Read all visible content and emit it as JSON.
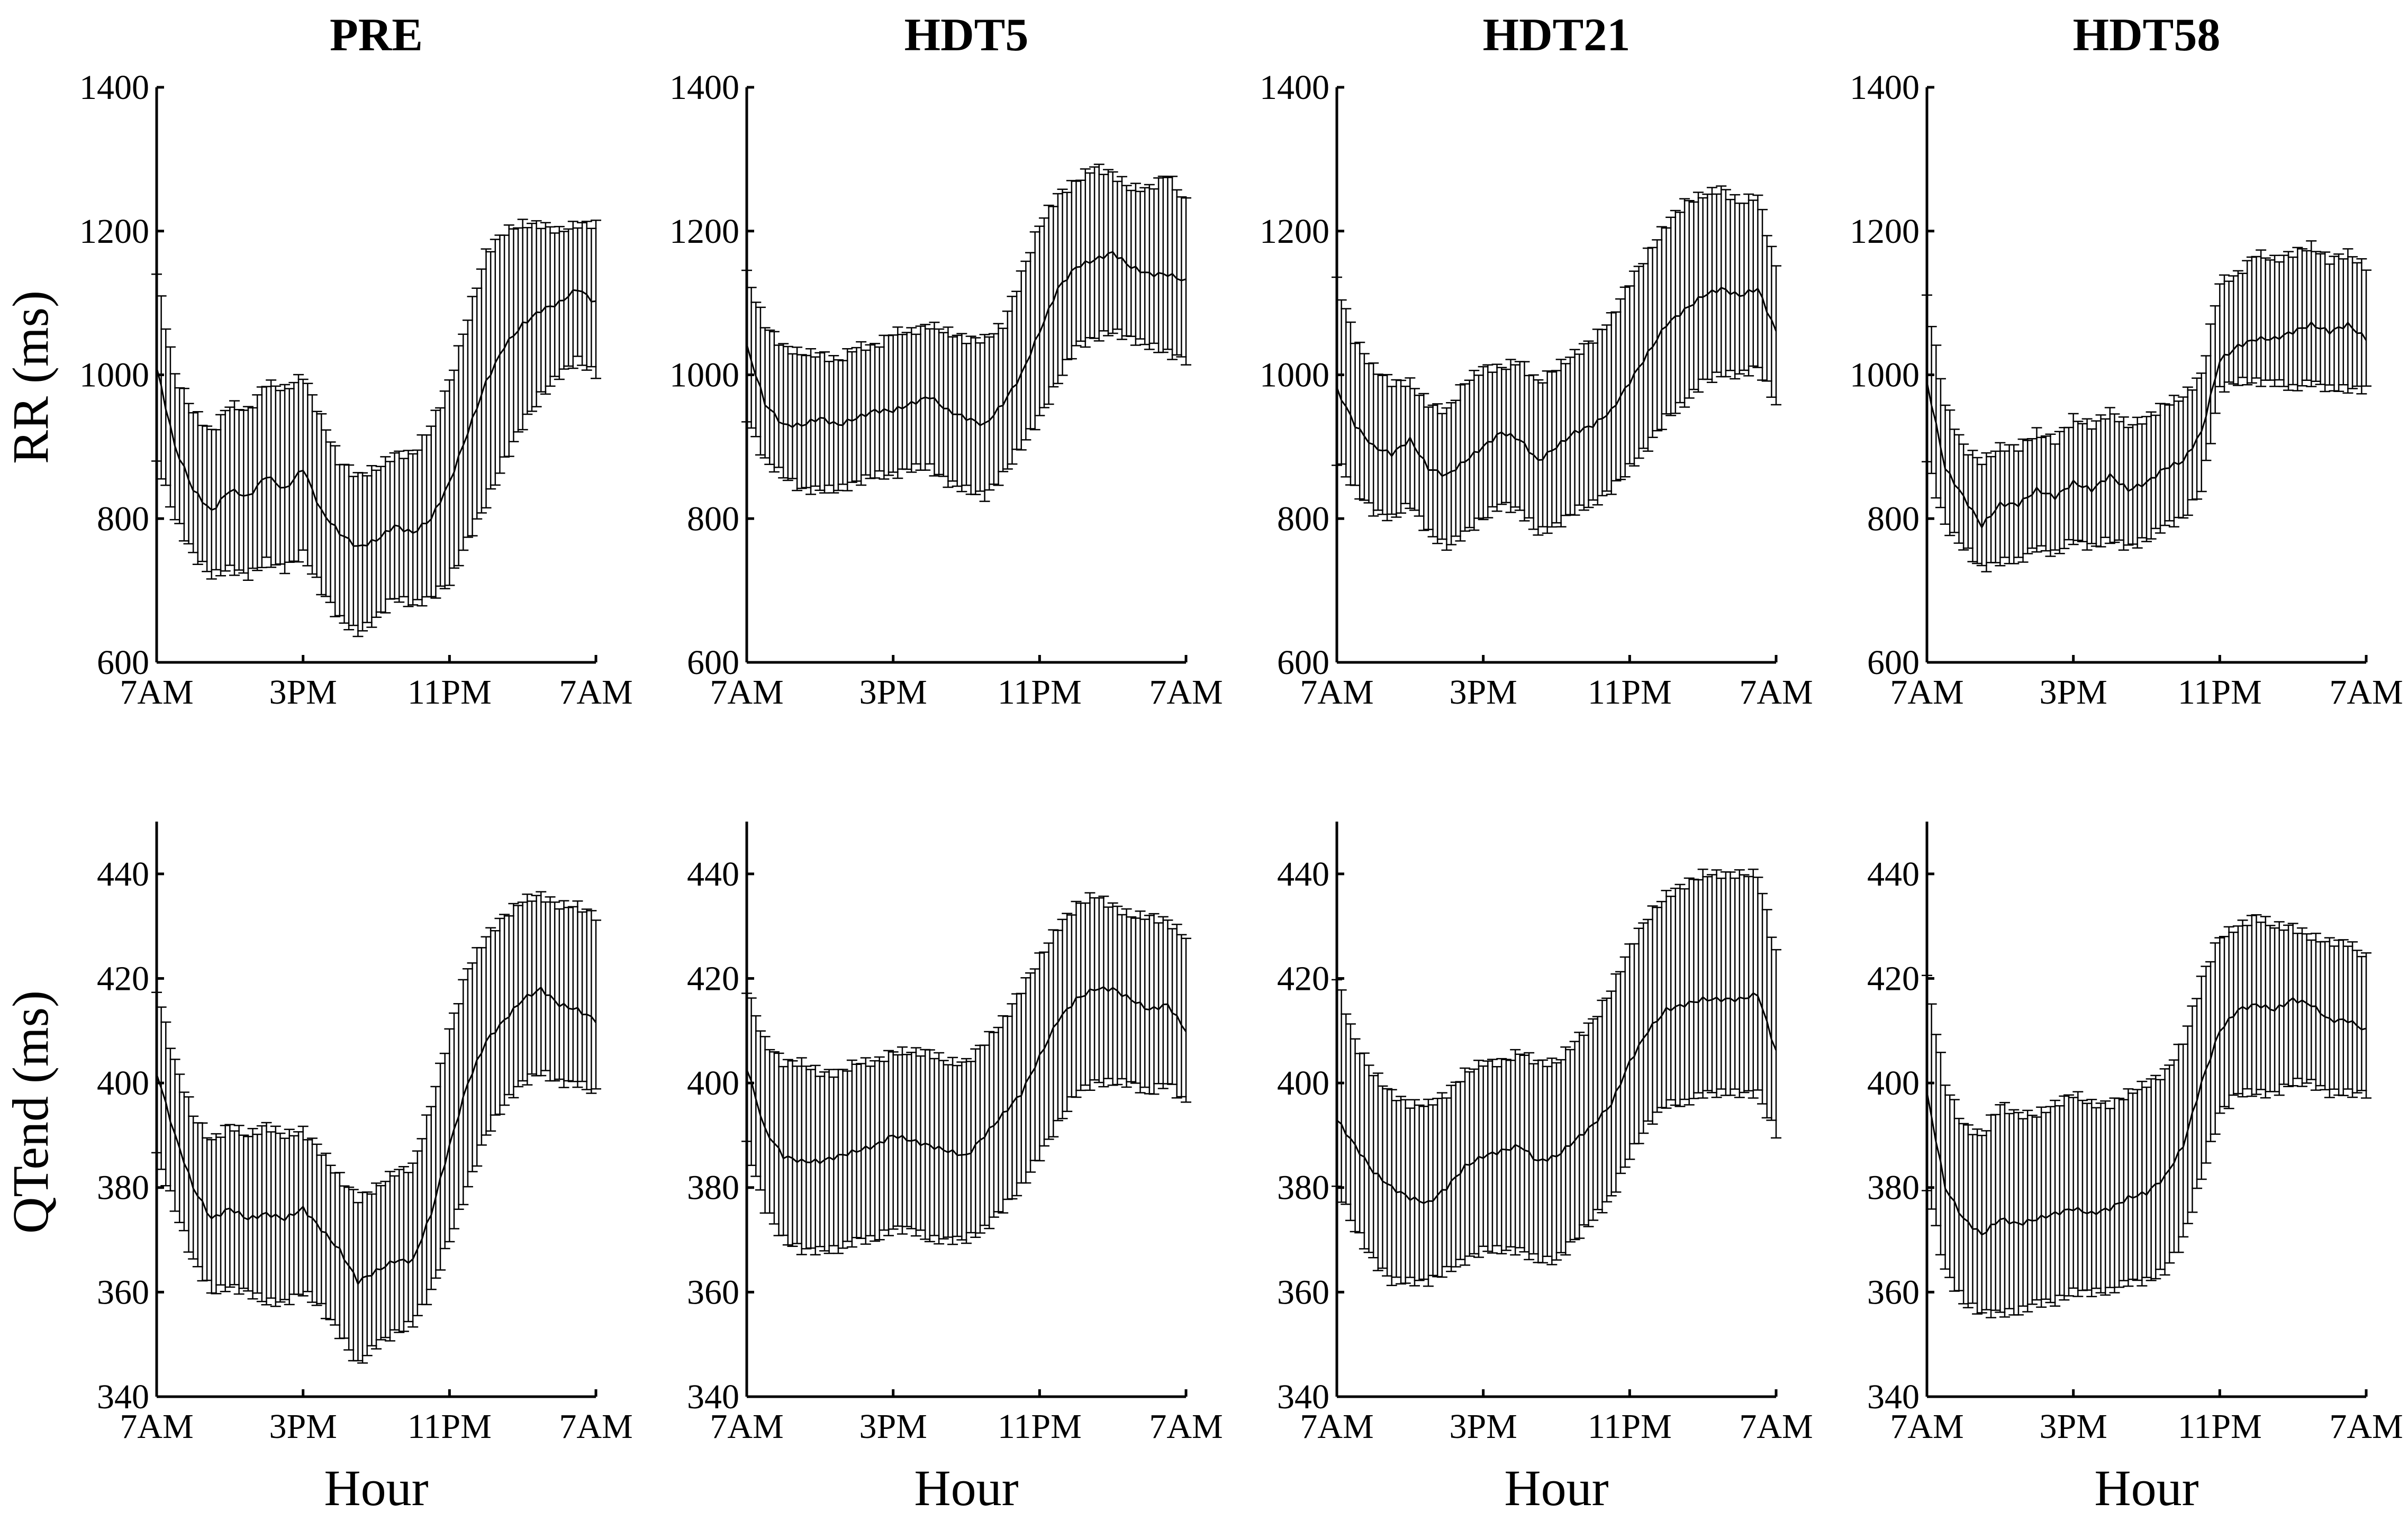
{
  "figure": {
    "ylabels": {
      "row_rr": "RR (ms)",
      "row_qt": "QTend (ms)"
    },
    "xlabel": "Hour"
  },
  "chart_data": [
    {
      "id": "pre_rr",
      "type": "line",
      "title": "PRE",
      "ylabel": "RR (ms)",
      "xlabel": "",
      "xticks": [
        "7AM",
        "3PM",
        "11PM",
        "7AM"
      ],
      "xlim": [
        0,
        24
      ],
      "yticks": [
        600,
        800,
        1000,
        1200,
        1400
      ],
      "ylim": [
        600,
        1400
      ],
      "error_bars": true,
      "series": [
        {
          "x": [
            0,
            1,
            2,
            3,
            4,
            5,
            6,
            7,
            8,
            9,
            10,
            11,
            12,
            13,
            14,
            15,
            16,
            17,
            18,
            19,
            20,
            21,
            22,
            23,
            24
          ],
          "mean": [
            1010,
            900,
            840,
            810,
            840,
            830,
            860,
            840,
            870,
            810,
            780,
            760,
            770,
            790,
            780,
            800,
            850,
            920,
            990,
            1040,
            1070,
            1090,
            1100,
            1120,
            1100
          ],
          "upper": [
            1140,
            1000,
            950,
            920,
            960,
            950,
            990,
            980,
            1000,
            940,
            880,
            860,
            870,
            890,
            890,
            930,
            990,
            1080,
            1170,
            1200,
            1210,
            1210,
            1200,
            1210,
            1210
          ],
          "lower": [
            880,
            800,
            750,
            720,
            730,
            720,
            740,
            730,
            750,
            700,
            660,
            640,
            660,
            690,
            680,
            690,
            710,
            770,
            820,
            880,
            930,
            970,
            1000,
            1020,
            1000
          ]
        }
      ]
    },
    {
      "id": "hdt5_rr",
      "type": "line",
      "title": "HDT5",
      "ylabel": "",
      "xlabel": "",
      "xticks": [
        "7AM",
        "3PM",
        "11PM",
        "7AM"
      ],
      "xlim": [
        0,
        24
      ],
      "yticks": [
        600,
        800,
        1000,
        1200,
        1400
      ],
      "ylim": [
        600,
        1400
      ],
      "error_bars": true,
      "series": [
        {
          "x": [
            0,
            1,
            2,
            3,
            4,
            5,
            6,
            7,
            8,
            9,
            10,
            11,
            12,
            13,
            14,
            15,
            16,
            17,
            18,
            19,
            20,
            21,
            22,
            23,
            24
          ],
          "mean": [
            1040,
            960,
            930,
            930,
            940,
            930,
            940,
            950,
            950,
            960,
            970,
            950,
            940,
            930,
            960,
            1000,
            1060,
            1120,
            1150,
            1160,
            1170,
            1150,
            1140,
            1140,
            1130
          ],
          "upper": [
            1140,
            1070,
            1040,
            1030,
            1030,
            1020,
            1040,
            1040,
            1060,
            1060,
            1070,
            1060,
            1050,
            1050,
            1070,
            1140,
            1210,
            1250,
            1270,
            1290,
            1280,
            1260,
            1260,
            1280,
            1240
          ],
          "lower": [
            940,
            880,
            860,
            840,
            840,
            840,
            850,
            860,
            860,
            870,
            870,
            850,
            840,
            830,
            860,
            900,
            940,
            990,
            1040,
            1050,
            1060,
            1050,
            1040,
            1030,
            1020
          ]
        }
      ]
    },
    {
      "id": "hdt21_rr",
      "type": "line",
      "title": "HDT21",
      "ylabel": "",
      "xlabel": "",
      "xticks": [
        "7AM",
        "3PM",
        "11PM",
        "7AM"
      ],
      "xlim": [
        0,
        24
      ],
      "yticks": [
        600,
        800,
        1000,
        1200,
        1400
      ],
      "ylim": [
        600,
        1400
      ],
      "error_bars": true,
      "series": [
        {
          "x": [
            0,
            1,
            2,
            3,
            4,
            5,
            6,
            7,
            8,
            9,
            10,
            11,
            12,
            13,
            14,
            15,
            16,
            17,
            18,
            19,
            20,
            21,
            22,
            23,
            24
          ],
          "mean": [
            980,
            930,
            900,
            890,
            910,
            870,
            860,
            880,
            900,
            920,
            910,
            880,
            900,
            920,
            930,
            950,
            990,
            1030,
            1070,
            1090,
            1110,
            1120,
            1110,
            1120,
            1060
          ],
          "upper": [
            1130,
            1050,
            1010,
            990,
            990,
            960,
            950,
            990,
            1010,
            1010,
            1020,
            990,
            1010,
            1030,
            1050,
            1080,
            1130,
            1170,
            1210,
            1240,
            1250,
            1260,
            1240,
            1250,
            1150
          ],
          "lower": [
            880,
            840,
            810,
            800,
            820,
            780,
            760,
            780,
            800,
            820,
            810,
            780,
            790,
            810,
            820,
            840,
            870,
            900,
            940,
            960,
            990,
            1000,
            1000,
            1010,
            960
          ]
        }
      ]
    },
    {
      "id": "hdt58_rr",
      "type": "line",
      "title": "HDT58",
      "ylabel": "",
      "xlabel": "",
      "xticks": [
        "7AM",
        "3PM",
        "11PM",
        "7AM"
      ],
      "xlim": [
        0,
        24
      ],
      "yticks": [
        600,
        800,
        1000,
        1200,
        1400
      ],
      "ylim": [
        600,
        1400
      ],
      "error_bars": true,
      "series": [
        {
          "x": [
            0,
            1,
            2,
            3,
            4,
            5,
            6,
            7,
            8,
            9,
            10,
            11,
            12,
            13,
            14,
            15,
            16,
            17,
            18,
            19,
            20,
            21,
            22,
            23,
            24
          ],
          "mean": [
            990,
            870,
            830,
            790,
            820,
            820,
            840,
            830,
            850,
            840,
            860,
            840,
            850,
            870,
            880,
            920,
            1020,
            1040,
            1050,
            1050,
            1060,
            1070,
            1060,
            1070,
            1050
          ],
          "upper": [
            1110,
            960,
            900,
            880,
            900,
            900,
            920,
            910,
            940,
            930,
            950,
            930,
            940,
            960,
            970,
            1000,
            1130,
            1140,
            1170,
            1160,
            1170,
            1180,
            1160,
            1170,
            1150
          ],
          "lower": [
            880,
            790,
            760,
            730,
            740,
            740,
            760,
            750,
            770,
            760,
            770,
            760,
            770,
            790,
            800,
            840,
            980,
            990,
            990,
            990,
            980,
            990,
            980,
            980,
            980
          ]
        }
      ]
    },
    {
      "id": "pre_qt",
      "type": "line",
      "title": "",
      "ylabel": "QTend (ms)",
      "xlabel": "Hour",
      "xticks": [
        "7AM",
        "3PM",
        "11PM",
        "7AM"
      ],
      "xlim": [
        0,
        24
      ],
      "yticks": [
        340,
        360,
        380,
        400,
        420,
        440
      ],
      "ylim": [
        340,
        450
      ],
      "error_bars": true,
      "series": [
        {
          "x": [
            0,
            1,
            2,
            3,
            4,
            5,
            6,
            7,
            8,
            9,
            10,
            11,
            12,
            13,
            14,
            15,
            16,
            17,
            18,
            19,
            20,
            21,
            22,
            23,
            24
          ],
          "mean": [
            402,
            390,
            380,
            374,
            376,
            374,
            375,
            374,
            376,
            372,
            368,
            362,
            364,
            366,
            366,
            375,
            388,
            400,
            408,
            412,
            416,
            418,
            415,
            414,
            412
          ],
          "upper": [
            418,
            404,
            394,
            389,
            392,
            390,
            392,
            390,
            391,
            387,
            382,
            378,
            380,
            383,
            384,
            396,
            410,
            422,
            428,
            432,
            435,
            436,
            434,
            434,
            432
          ],
          "lower": [
            386,
            376,
            366,
            360,
            361,
            360,
            358,
            358,
            360,
            357,
            352,
            346,
            350,
            352,
            354,
            360,
            370,
            380,
            390,
            396,
            400,
            402,
            400,
            400,
            398
          ]
        }
      ]
    },
    {
      "id": "hdt5_qt",
      "type": "line",
      "title": "",
      "ylabel": "",
      "xlabel": "Hour",
      "xticks": [
        "7AM",
        "3PM",
        "11PM",
        "7AM"
      ],
      "xlim": [
        0,
        24
      ],
      "yticks": [
        340,
        360,
        380,
        400,
        420,
        440
      ],
      "ylim": [
        340,
        450
      ],
      "error_bars": true,
      "series": [
        {
          "x": [
            0,
            1,
            2,
            3,
            4,
            5,
            6,
            7,
            8,
            9,
            10,
            11,
            12,
            13,
            14,
            15,
            16,
            17,
            18,
            19,
            20,
            21,
            22,
            23,
            24
          ],
          "mean": [
            403,
            391,
            386,
            385,
            385,
            386,
            387,
            388,
            390,
            389,
            388,
            387,
            386,
            390,
            394,
            398,
            405,
            412,
            416,
            418,
            418,
            416,
            414,
            415,
            410
          ],
          "upper": [
            418,
            408,
            404,
            404,
            402,
            402,
            404,
            404,
            406,
            406,
            406,
            404,
            404,
            408,
            412,
            418,
            424,
            430,
            434,
            436,
            434,
            432,
            432,
            431,
            428
          ],
          "lower": [
            388,
            376,
            370,
            368,
            368,
            368,
            370,
            370,
            372,
            372,
            370,
            370,
            370,
            372,
            376,
            380,
            386,
            392,
            398,
            400,
            400,
            400,
            398,
            400,
            396
          ]
        }
      ]
    },
    {
      "id": "hdt21_qt",
      "type": "line",
      "title": "",
      "ylabel": "",
      "xlabel": "Hour",
      "xticks": [
        "7AM",
        "3PM",
        "11PM",
        "7AM"
      ],
      "xlim": [
        0,
        24
      ],
      "yticks": [
        340,
        360,
        380,
        400,
        420,
        440
      ],
      "ylim": [
        340,
        450
      ],
      "error_bars": true,
      "series": [
        {
          "x": [
            0,
            1,
            2,
            3,
            4,
            5,
            6,
            7,
            8,
            9,
            10,
            11,
            12,
            13,
            14,
            15,
            16,
            17,
            18,
            19,
            20,
            21,
            22,
            23,
            24
          ],
          "mean": [
            393,
            388,
            383,
            380,
            378,
            377,
            380,
            384,
            386,
            387,
            388,
            385,
            386,
            389,
            392,
            396,
            404,
            410,
            414,
            415,
            416,
            416,
            416,
            417,
            406
          ],
          "upper": [
            420,
            408,
            402,
            398,
            396,
            396,
            398,
            402,
            404,
            404,
            406,
            404,
            404,
            408,
            412,
            418,
            426,
            432,
            436,
            438,
            440,
            440,
            440,
            440,
            425
          ],
          "lower": [
            380,
            372,
            366,
            362,
            362,
            362,
            364,
            366,
            368,
            368,
            368,
            366,
            366,
            370,
            374,
            378,
            386,
            392,
            396,
            396,
            398,
            398,
            398,
            398,
            390
          ]
        }
      ]
    },
    {
      "id": "hdt58_qt",
      "type": "line",
      "title": "",
      "ylabel": "",
      "xlabel": "Hour",
      "xticks": [
        "7AM",
        "3PM",
        "11PM",
        "7AM"
      ],
      "xlim": [
        0,
        24
      ],
      "yticks": [
        340,
        360,
        380,
        400,
        420,
        440
      ],
      "ylim": [
        340,
        450
      ],
      "error_bars": true,
      "series": [
        {
          "x": [
            0,
            1,
            2,
            3,
            4,
            5,
            6,
            7,
            8,
            9,
            10,
            11,
            12,
            13,
            14,
            15,
            16,
            17,
            18,
            19,
            20,
            21,
            22,
            23,
            24
          ],
          "mean": [
            398,
            380,
            374,
            371,
            374,
            373,
            374,
            375,
            376,
            375,
            376,
            378,
            379,
            382,
            388,
            400,
            410,
            414,
            415,
            414,
            416,
            415,
            412,
            412,
            410
          ],
          "upper": [
            420,
            400,
            392,
            390,
            396,
            394,
            394,
            396,
            398,
            396,
            396,
            398,
            400,
            402,
            408,
            420,
            428,
            430,
            432,
            430,
            430,
            428,
            427,
            427,
            424
          ],
          "lower": [
            380,
            364,
            358,
            356,
            356,
            356,
            358,
            358,
            360,
            360,
            360,
            362,
            362,
            364,
            370,
            382,
            394,
            398,
            398,
            398,
            400,
            400,
            398,
            398,
            398
          ]
        }
      ]
    }
  ]
}
